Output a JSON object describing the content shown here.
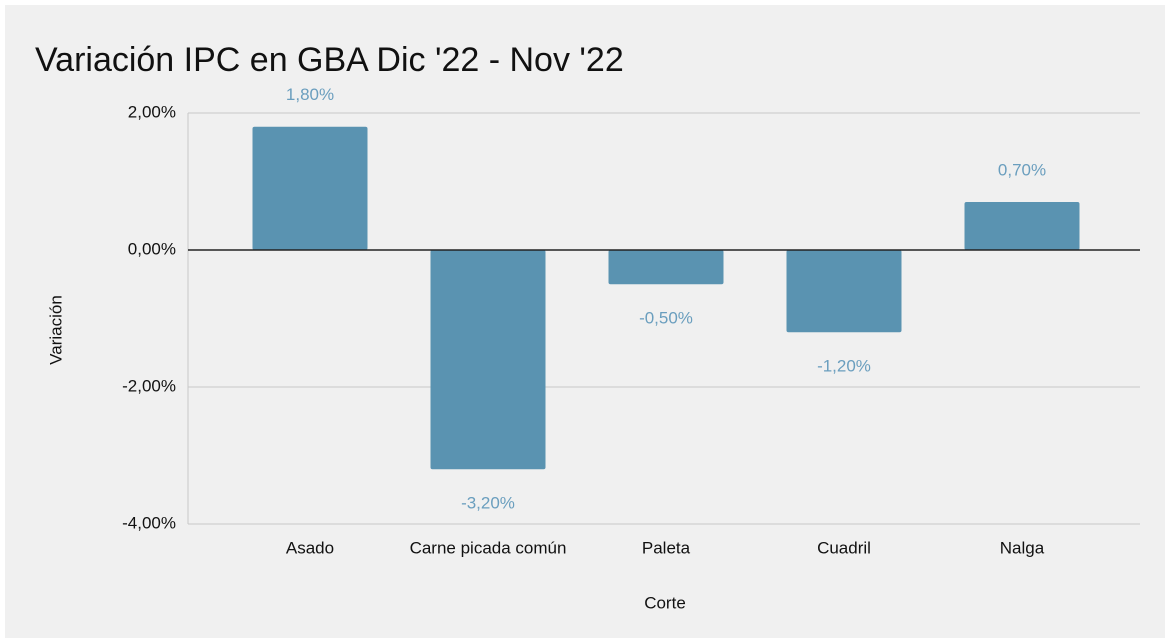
{
  "chart_data": {
    "type": "bar",
    "title": "Variación IPC en GBA Dic '22 - Nov '22",
    "x_label": "Corte",
    "y_label": "Variación",
    "categories": [
      "Asado",
      "Carne picada común",
      "Paleta",
      "Cuadril",
      "Nalga"
    ],
    "values": [
      1.8,
      -3.2,
      -0.5,
      -1.2,
      0.7
    ],
    "value_labels": [
      "1,80%",
      "-3,20%",
      "-0,50%",
      "-1,20%",
      "0,70%"
    ],
    "color": "#5a93b1",
    "ylim": [
      -4,
      2
    ],
    "yticks": [
      {
        "value": 2,
        "label": "2,00%"
      },
      {
        "value": 0,
        "label": "0,00%"
      },
      {
        "value": -2,
        "label": "-2,00%"
      },
      {
        "value": -4,
        "label": "-4,00%"
      }
    ],
    "grid": true
  }
}
